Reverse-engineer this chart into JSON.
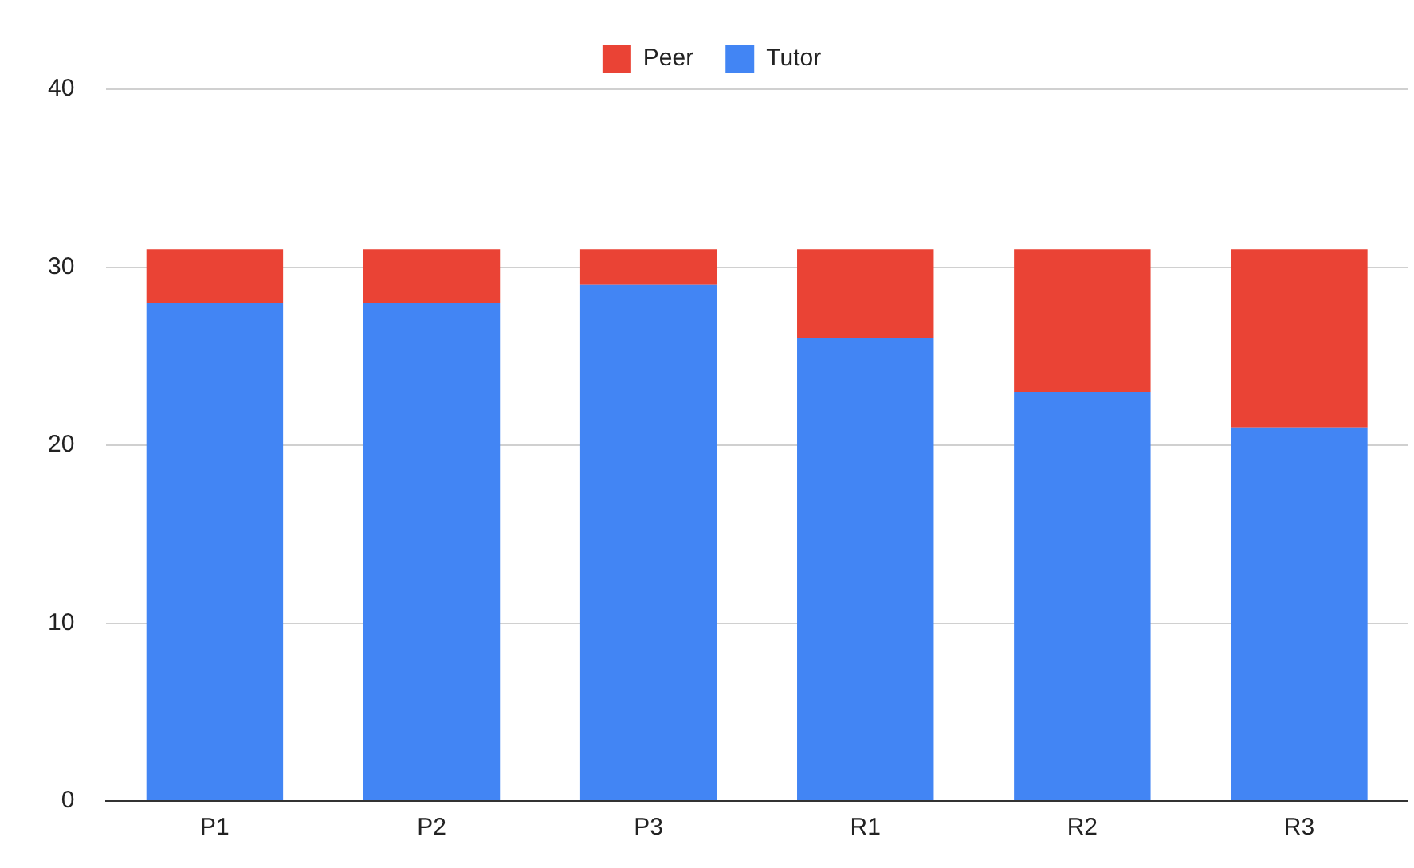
{
  "chart_data": {
    "type": "bar",
    "stacked": true,
    "categories": [
      "P1",
      "P2",
      "P3",
      "R1",
      "R2",
      "R3"
    ],
    "series": [
      {
        "name": "Tutor",
        "color": "#4285f4",
        "values": [
          28,
          28,
          29,
          26,
          23,
          21
        ]
      },
      {
        "name": "Peer",
        "color": "#ea4335",
        "values": [
          3,
          3,
          2,
          5,
          8,
          10
        ]
      }
    ],
    "ylim": [
      0,
      40
    ],
    "yticks": [
      0,
      10,
      20,
      30,
      40
    ],
    "grid": "y",
    "legend": "top"
  }
}
